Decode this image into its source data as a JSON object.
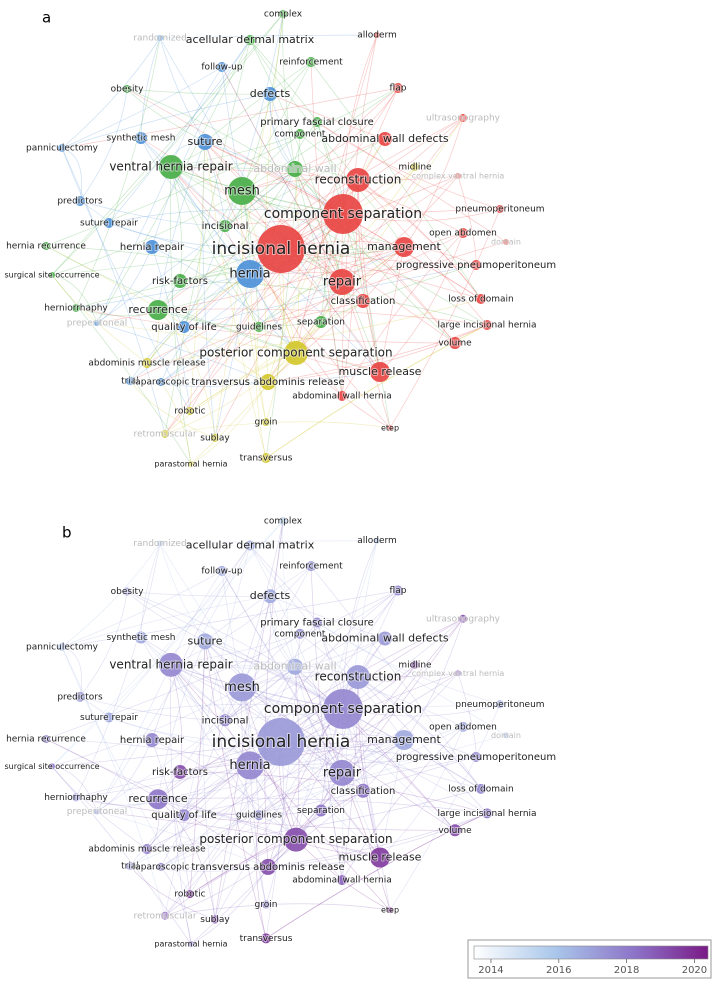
{
  "panels": [
    {
      "label": "a"
    },
    {
      "label": "b"
    }
  ],
  "nodes": [
    "complex",
    "randomized",
    "acellular dermal matrix",
    "alloderm",
    "follow-up",
    "reinforcement",
    "obesity",
    "flap",
    "defects",
    "ultrasonography",
    "primary fascial closure",
    "component",
    "abdominal wall defects",
    "synthetic mesh",
    "panniculectomy",
    "suture",
    "ventral hernia repair",
    "abdominal wall",
    "midline",
    "complex ventral hernia",
    "reconstruction",
    "mesh",
    "predictors",
    "component separation",
    "pneumoperitoneum",
    "suture repair",
    "incisional",
    "open abdomen",
    "domain",
    "management",
    "incisional hernia",
    "hernia recurrence",
    "hernia repair",
    "surgical site occurrence",
    "progressive pneumoperitoneum",
    "hernia",
    "repair",
    "risk-factors",
    "classification",
    "loss of domain",
    "herniorrhaphy",
    "recurrence",
    "preperitoneal",
    "large incisional hernia",
    "quality of life",
    "guidelines",
    "separation",
    "volume",
    "posterior component separation",
    "abdominis muscle release",
    "muscle release",
    "trial",
    "laparoscopic",
    "transversus abdominis release",
    "abdominal wall hernia",
    "robotic",
    "retromuscular",
    "groin",
    "sublay",
    "etep",
    "parastomal hernia",
    "transversus"
  ],
  "colorbar": {
    "range": [
      2013.5,
      2020.4
    ],
    "ticks": [
      2014,
      2016,
      2018,
      2020
    ]
  }
}
